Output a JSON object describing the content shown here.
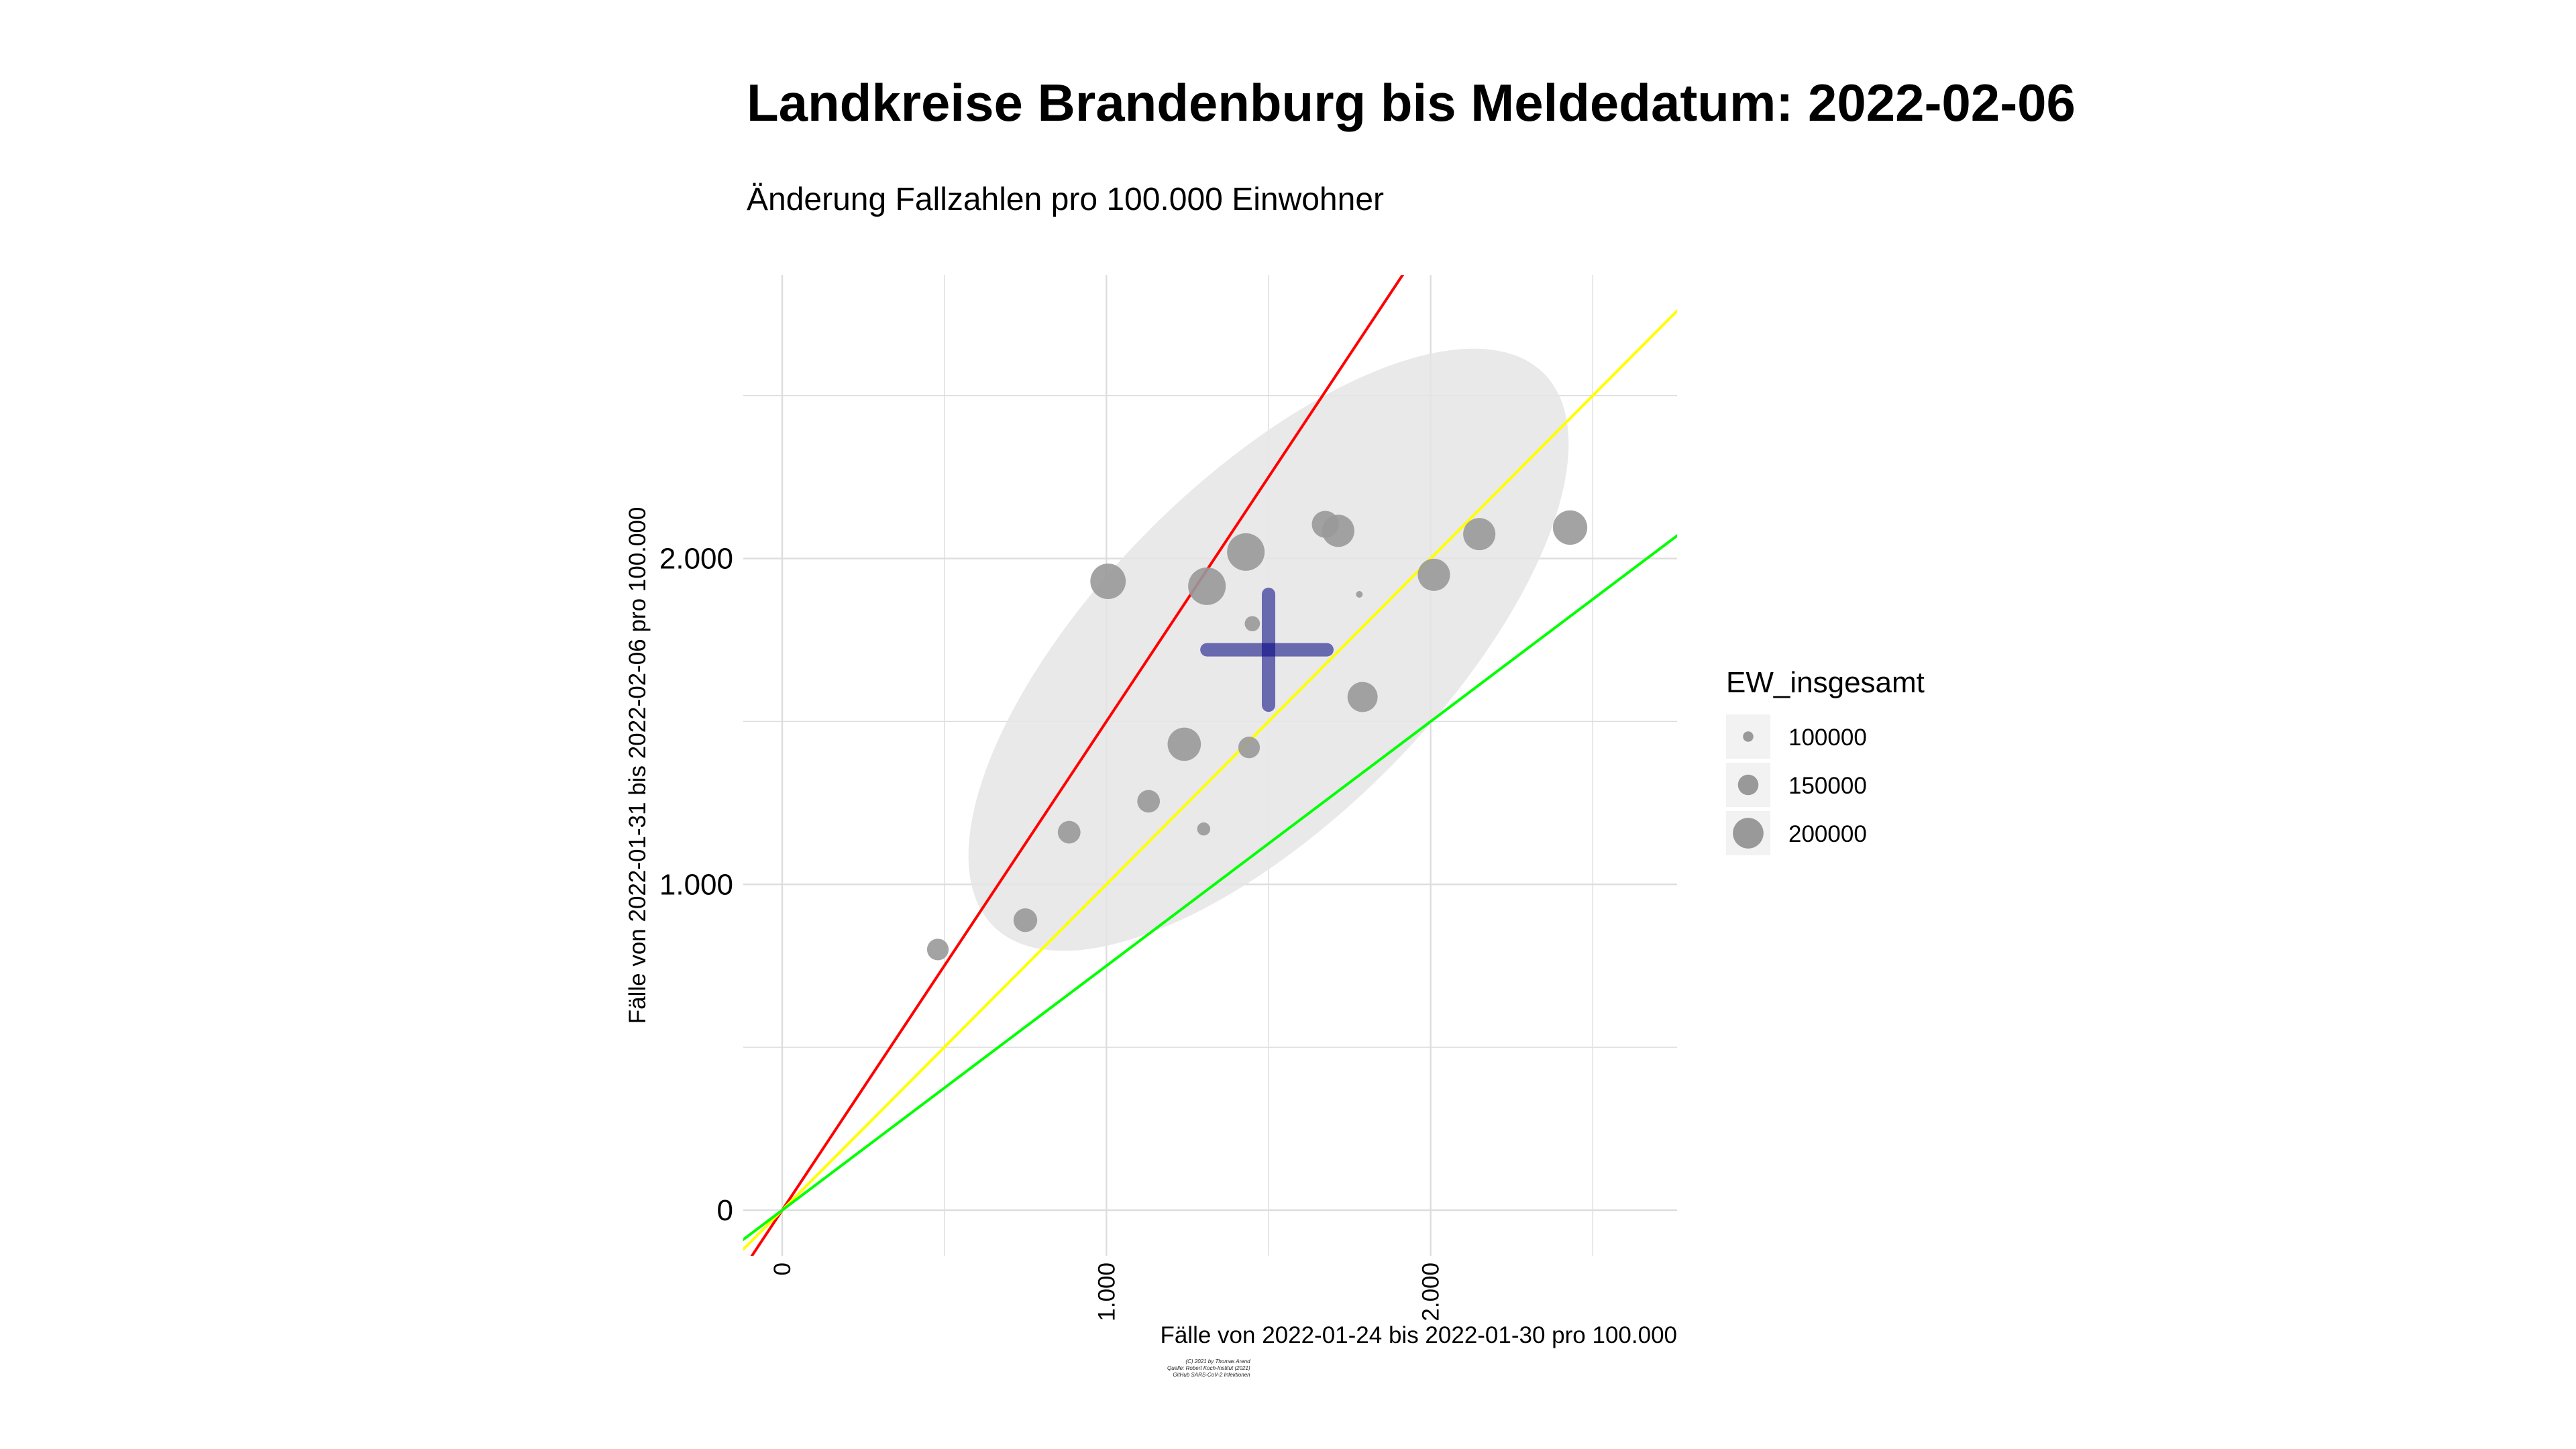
{
  "title": "Landkreise Brandenburg bis Meldedatum: 2022-02-06",
  "subtitle": "Änderung Fallzahlen pro 100.000 Einwohner",
  "caption": [
    "(C) 2021 by Thomas Arend",
    "Quelle: Robert Koch-Institut (2021)",
    "GitHub SARS-CoV-2 Infektionen"
  ],
  "chart_data": {
    "type": "scatter",
    "xlabel": "Fälle von 2022-01-24 bis 2022-01-30 pro 100.000",
    "ylabel": "Fälle von 2022-01-31 bis 2022-02-06 pro 100.000",
    "xlim": [
      -120,
      2760
    ],
    "ylim": [
      -140,
      2870
    ],
    "x_ticks": [
      0,
      1000,
      2000
    ],
    "x_tick_labels": [
      "0",
      "1.000",
      "2.000"
    ],
    "y_ticks": [
      0,
      1000,
      2000
    ],
    "y_tick_labels": [
      "0",
      "1.000",
      "2.000"
    ],
    "grid": true,
    "points": [
      {
        "x": 480,
        "y": 800,
        "ew": 150000
      },
      {
        "x": 750,
        "y": 890,
        "ew": 160000
      },
      {
        "x": 885,
        "y": 1160,
        "ew": 155000
      },
      {
        "x": 1130,
        "y": 1255,
        "ew": 155000
      },
      {
        "x": 1300,
        "y": 1170,
        "ew": 110000
      },
      {
        "x": 1240,
        "y": 1430,
        "ew": 205000
      },
      {
        "x": 1440,
        "y": 1420,
        "ew": 150000
      },
      {
        "x": 1450,
        "y": 1800,
        "ew": 120000
      },
      {
        "x": 1005,
        "y": 1930,
        "ew": 215000
      },
      {
        "x": 1310,
        "y": 1915,
        "ew": 225000
      },
      {
        "x": 1430,
        "y": 2020,
        "ew": 225000
      },
      {
        "x": 1675,
        "y": 2105,
        "ew": 175000
      },
      {
        "x": 1715,
        "y": 2085,
        "ew": 200000
      },
      {
        "x": 1780,
        "y": 1890,
        "ew": 80000
      },
      {
        "x": 1790,
        "y": 1575,
        "ew": 190000
      },
      {
        "x": 2010,
        "y": 1950,
        "ew": 200000
      },
      {
        "x": 2150,
        "y": 2075,
        "ew": 200000
      },
      {
        "x": 2430,
        "y": 2095,
        "ew": 210000
      }
    ],
    "ellipse": {
      "cx": 1500,
      "cy": 1720,
      "axis_along_diagonal": 1200,
      "axis_across_diagonal": 520
    },
    "mean_cross": {
      "x": 1500,
      "y": 1720,
      "x_range": [
        1310,
        1680
      ],
      "y_range": [
        1550,
        1890
      ],
      "color": "#00007f"
    },
    "reference_lines": [
      {
        "slope": 1.5,
        "color": "#ff0000"
      },
      {
        "slope": 1.0,
        "color": "#ffff00"
      },
      {
        "slope": 0.75,
        "color": "#00ff00"
      }
    ],
    "legend": {
      "title": "EW_insgesamt",
      "position": "right",
      "items": [
        {
          "label": "100000",
          "value": 100000
        },
        {
          "label": "150000",
          "value": 150000
        },
        {
          "label": "200000",
          "value": 200000
        }
      ]
    },
    "point_color": "#999999",
    "ellipse_color": "#e5e5e5",
    "grid_color": "#dddddd"
  }
}
